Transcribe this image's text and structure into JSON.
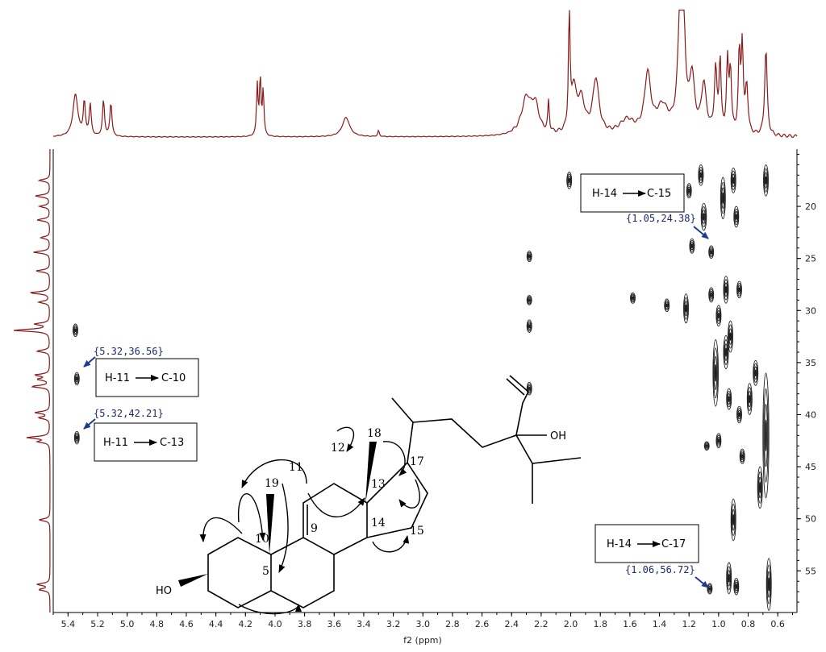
{
  "chart_data": {
    "type": "heatmap",
    "title": "",
    "xlabel": "f2 (ppm)",
    "ylabel": "",
    "x_range": [
      5.5,
      0.47
    ],
    "y_range": [
      14.5,
      59
    ],
    "x_ticks": [
      5.4,
      5.2,
      5.0,
      4.8,
      4.6,
      4.4,
      4.2,
      4.0,
      3.8,
      3.6,
      3.4,
      3.2,
      3.0,
      2.8,
      2.6,
      2.4,
      2.2,
      2.0,
      1.8,
      1.6,
      1.4,
      1.2,
      1.0,
      0.8,
      0.6
    ],
    "x_tick_labels": [
      "5.4",
      "5.2",
      "5.0",
      "4.8",
      "4.6",
      "4.4",
      "4.2",
      "4.0",
      "3.8",
      "3.6",
      "3.4",
      "3.2",
      "3.0",
      "2.8",
      "2.6",
      "2.4",
      "2.2",
      "2.0",
      "1.8",
      "1.6",
      "1.4",
      "1.2",
      "1.0",
      "0.8",
      "0.6"
    ],
    "y_ticks": [
      20,
      25,
      30,
      35,
      40,
      45,
      50,
      55
    ],
    "y_tick_labels": [
      "20",
      "25",
      "30",
      "35",
      "40",
      "45",
      "50",
      "55"
    ],
    "proton_spectrum": [
      {
        "x": 5.35,
        "h": 0.35,
        "w": 0.02
      },
      {
        "x": 5.29,
        "h": 0.28,
        "w": 0.008
      },
      {
        "x": 5.25,
        "h": 0.26,
        "w": 0.008
      },
      {
        "x": 5.16,
        "h": 0.3,
        "w": 0.008
      },
      {
        "x": 5.11,
        "h": 0.28,
        "w": 0.008
      },
      {
        "x": 4.12,
        "h": 0.42,
        "w": 0.006
      },
      {
        "x": 4.1,
        "h": 0.48,
        "w": 0.006
      },
      {
        "x": 4.08,
        "h": 0.38,
        "w": 0.006
      },
      {
        "x": 3.52,
        "h": 0.16,
        "w": 0.03
      },
      {
        "x": 3.3,
        "h": 0.05,
        "w": 0.006
      },
      {
        "x": 2.3,
        "h": 0.3,
        "w": 0.04
      },
      {
        "x": 2.24,
        "h": 0.22,
        "w": 0.03
      },
      {
        "x": 2.15,
        "h": 0.25,
        "w": 0.006
      },
      {
        "x": 2.01,
        "h": 1.0,
        "w": 0.006
      },
      {
        "x": 1.98,
        "h": 0.35,
        "w": 0.02
      },
      {
        "x": 1.93,
        "h": 0.28,
        "w": 0.03
      },
      {
        "x": 1.83,
        "h": 0.45,
        "w": 0.025
      },
      {
        "x": 1.62,
        "h": 0.12,
        "w": 0.06
      },
      {
        "x": 1.48,
        "h": 0.48,
        "w": 0.025
      },
      {
        "x": 1.38,
        "h": 0.22,
        "w": 0.05
      },
      {
        "x": 1.26,
        "h": 0.88,
        "w": 0.018
      },
      {
        "x": 1.24,
        "h": 0.92,
        "w": 0.015
      },
      {
        "x": 1.18,
        "h": 0.45,
        "w": 0.02
      },
      {
        "x": 1.1,
        "h": 0.4,
        "w": 0.02
      },
      {
        "x": 1.02,
        "h": 0.52,
        "w": 0.01
      },
      {
        "x": 0.99,
        "h": 0.6,
        "w": 0.008
      },
      {
        "x": 0.94,
        "h": 0.58,
        "w": 0.008
      },
      {
        "x": 0.92,
        "h": 0.52,
        "w": 0.008
      },
      {
        "x": 0.86,
        "h": 0.65,
        "w": 0.008
      },
      {
        "x": 0.84,
        "h": 0.72,
        "w": 0.008
      },
      {
        "x": 0.81,
        "h": 0.4,
        "w": 0.01
      },
      {
        "x": 0.68,
        "h": 0.72,
        "w": 0.01
      }
    ],
    "carbon_spectrum": [
      {
        "y": 17.5,
        "h": 0.3
      },
      {
        "y": 19.0,
        "h": 0.4
      },
      {
        "y": 20.0,
        "h": 0.28
      },
      {
        "y": 21.3,
        "h": 0.35
      },
      {
        "y": 23.0,
        "h": 0.25
      },
      {
        "y": 24.4,
        "h": 0.45
      },
      {
        "y": 26.2,
        "h": 0.38
      },
      {
        "y": 28.3,
        "h": 0.55
      },
      {
        "y": 29.2,
        "h": 0.3
      },
      {
        "y": 31.3,
        "h": 0.4
      },
      {
        "y": 31.9,
        "h": 1.0
      },
      {
        "y": 33.9,
        "h": 0.36
      },
      {
        "y": 36.2,
        "h": 0.4
      },
      {
        "y": 36.6,
        "h": 0.32
      },
      {
        "y": 37.3,
        "h": 0.5
      },
      {
        "y": 39.8,
        "h": 0.4
      },
      {
        "y": 40.3,
        "h": 0.3
      },
      {
        "y": 42.2,
        "h": 0.62
      },
      {
        "y": 42.6,
        "h": 0.3
      },
      {
        "y": 50.1,
        "h": 0.3
      },
      {
        "y": 56.3,
        "h": 0.35
      },
      {
        "y": 56.8,
        "h": 0.3
      }
    ],
    "cross_peaks": [
      {
        "x": 5.35,
        "y": 31.9,
        "rx": 0.012,
        "ry": 0.6
      },
      {
        "x": 5.34,
        "y": 36.56,
        "rx": 0.012,
        "ry": 0.6
      },
      {
        "x": 5.34,
        "y": 42.21,
        "rx": 0.012,
        "ry": 0.6
      },
      {
        "x": 2.01,
        "y": 17.5,
        "rx": 0.012,
        "ry": 0.8
      },
      {
        "x": 2.28,
        "y": 24.8,
        "rx": 0.01,
        "ry": 0.5
      },
      {
        "x": 2.28,
        "y": 29.0,
        "rx": 0.01,
        "ry": 0.45
      },
      {
        "x": 2.28,
        "y": 31.5,
        "rx": 0.012,
        "ry": 0.6
      },
      {
        "x": 2.28,
        "y": 37.5,
        "rx": 0.012,
        "ry": 0.6
      },
      {
        "x": 1.58,
        "y": 28.8,
        "rx": 0.012,
        "ry": 0.5
      },
      {
        "x": 1.35,
        "y": 29.5,
        "rx": 0.01,
        "ry": 0.6
      },
      {
        "x": 1.22,
        "y": 29.8,
        "rx": 0.014,
        "ry": 1.4
      },
      {
        "x": 1.2,
        "y": 18.5,
        "rx": 0.01,
        "ry": 0.7
      },
      {
        "x": 1.18,
        "y": 23.8,
        "rx": 0.01,
        "ry": 0.7
      },
      {
        "x": 1.12,
        "y": 17.0,
        "rx": 0.014,
        "ry": 1.0
      },
      {
        "x": 1.1,
        "y": 21.0,
        "rx": 0.018,
        "ry": 1.3
      },
      {
        "x": 1.05,
        "y": 24.38,
        "rx": 0.01,
        "ry": 0.6
      },
      {
        "x": 1.05,
        "y": 28.5,
        "rx": 0.012,
        "ry": 0.7
      },
      {
        "x": 1.02,
        "y": 36.0,
        "rx": 0.018,
        "ry": 3.2
      },
      {
        "x": 1.0,
        "y": 30.5,
        "rx": 0.014,
        "ry": 1.0
      },
      {
        "x": 0.97,
        "y": 19.2,
        "rx": 0.016,
        "ry": 2.0
      },
      {
        "x": 0.95,
        "y": 28.0,
        "rx": 0.014,
        "ry": 1.3
      },
      {
        "x": 0.95,
        "y": 34.0,
        "rx": 0.012,
        "ry": 1.6
      },
      {
        "x": 0.93,
        "y": 38.5,
        "rx": 0.012,
        "ry": 1.0
      },
      {
        "x": 0.92,
        "y": 32.5,
        "rx": 0.016,
        "ry": 1.5
      },
      {
        "x": 0.9,
        "y": 17.5,
        "rx": 0.014,
        "ry": 1.2
      },
      {
        "x": 0.88,
        "y": 21.0,
        "rx": 0.012,
        "ry": 1.0
      },
      {
        "x": 0.86,
        "y": 28.0,
        "rx": 0.012,
        "ry": 0.8
      },
      {
        "x": 0.86,
        "y": 40.0,
        "rx": 0.01,
        "ry": 0.8
      },
      {
        "x": 0.84,
        "y": 44.0,
        "rx": 0.01,
        "ry": 0.7
      },
      {
        "x": 0.9,
        "y": 50.1,
        "rx": 0.014,
        "ry": 2.0
      },
      {
        "x": 0.93,
        "y": 55.7,
        "rx": 0.014,
        "ry": 1.5
      },
      {
        "x": 0.88,
        "y": 56.5,
        "rx": 0.012,
        "ry": 0.8
      },
      {
        "x": 0.68,
        "y": 17.5,
        "rx": 0.014,
        "ry": 1.5
      },
      {
        "x": 0.68,
        "y": 42.0,
        "rx": 0.02,
        "ry": 6.0
      },
      {
        "x": 0.66,
        "y": 56.3,
        "rx": 0.016,
        "ry": 2.5
      },
      {
        "x": 0.72,
        "y": 47.0,
        "rx": 0.012,
        "ry": 2.0
      },
      {
        "x": 0.75,
        "y": 36.0,
        "rx": 0.01,
        "ry": 1.2
      },
      {
        "x": 1.06,
        "y": 56.72,
        "rx": 0.012,
        "ry": 0.5
      },
      {
        "x": 1.08,
        "y": 43.0,
        "rx": 0.008,
        "ry": 0.4
      },
      {
        "x": 1.0,
        "y": 42.5,
        "rx": 0.01,
        "ry": 0.7
      },
      {
        "x": 0.79,
        "y": 38.5,
        "rx": 0.01,
        "ry": 1.5
      }
    ],
    "annotations": [
      {
        "point": [
          5.32,
          36.56
        ],
        "coord_label": "{5.32,36.56}",
        "from_label": "H-11",
        "to_label": "C-10"
      },
      {
        "point": [
          5.32,
          42.21
        ],
        "coord_label": "{5.32,42.21}",
        "from_label": "H-11",
        "to_label": "C-13"
      },
      {
        "point": [
          1.05,
          24.38
        ],
        "coord_label": "{1.05,24.38}",
        "from_label": "H-14",
        "to_label": "C-15"
      },
      {
        "point": [
          1.06,
          56.72
        ],
        "coord_label": "{1.06,56.72}",
        "from_label": "H-14",
        "to_label": "C-17"
      }
    ]
  },
  "structure": {
    "atom_labels": {
      "c5": "5",
      "c9": "9",
      "c10": "10",
      "c11": "11",
      "c12": "12",
      "c13": "13",
      "c14": "14",
      "c15": "15",
      "c17": "17",
      "c18": "18",
      "c19": "19"
    },
    "oh_left": "HO",
    "oh_right": "OH"
  },
  "colors": {
    "proton_trace": "#8b1a1a",
    "carbon_trace": "#8b1a1a",
    "contour": "#1f1f1f",
    "coord_text": "#1a2a6c",
    "pointer": "#1f3a93"
  }
}
